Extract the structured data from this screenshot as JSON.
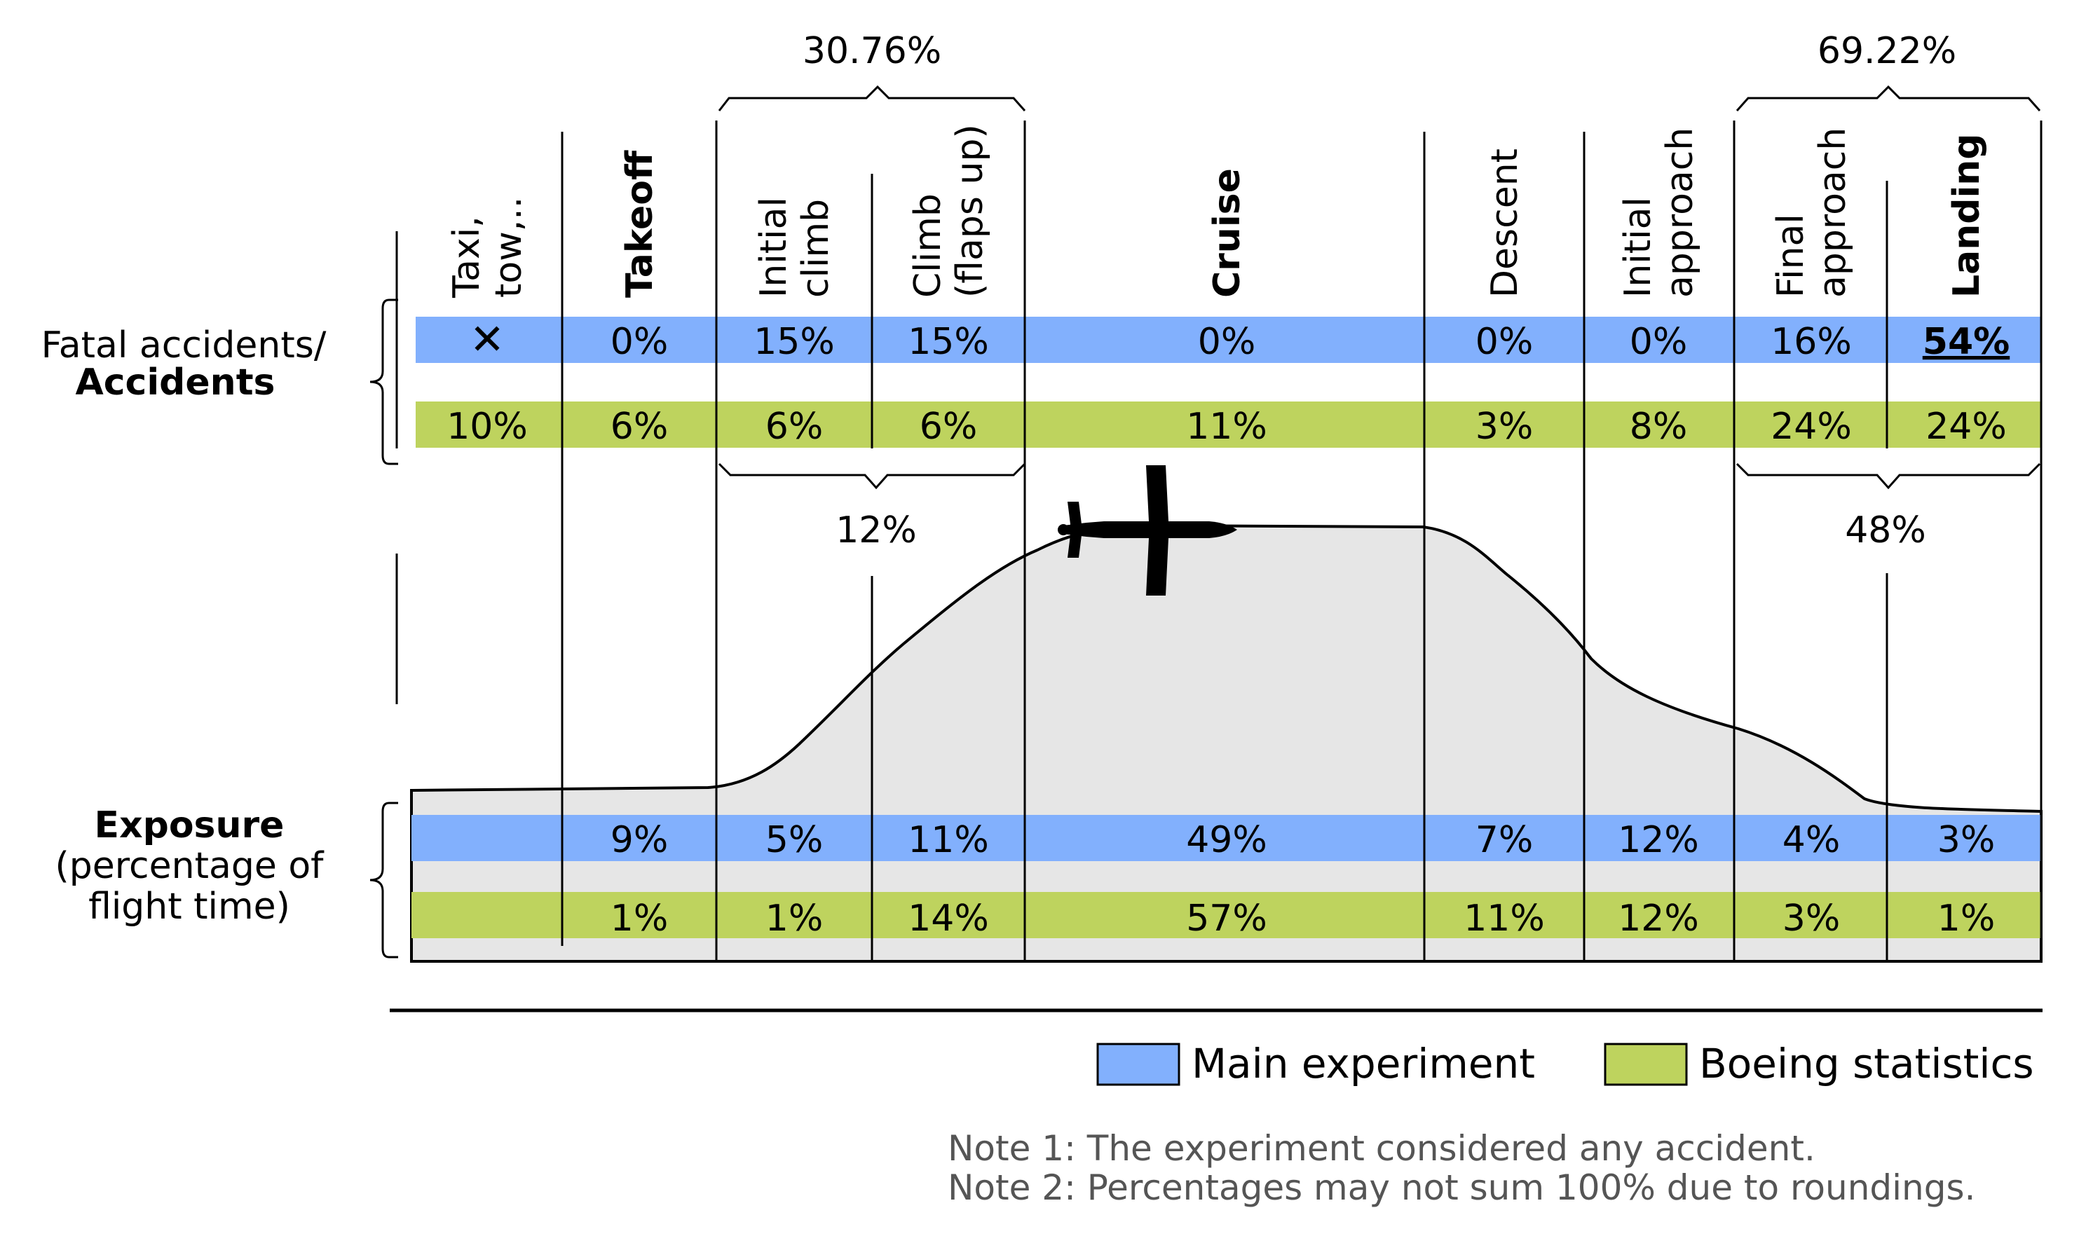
{
  "phases": [
    {
      "id": "taxi",
      "lines": [
        "Taxi,",
        "tow,.."
      ],
      "bold": false
    },
    {
      "id": "takeoff",
      "lines": [
        "Takeoff"
      ],
      "bold": true
    },
    {
      "id": "initial-climb",
      "lines": [
        "Initial",
        "climb"
      ],
      "bold": false
    },
    {
      "id": "climb-flaps-up",
      "lines": [
        "Climb",
        "(flaps up)"
      ],
      "bold": false
    },
    {
      "id": "cruise",
      "lines": [
        "Cruise"
      ],
      "bold": true
    },
    {
      "id": "descent",
      "lines": [
        "Descent"
      ],
      "bold": false
    },
    {
      "id": "initial-approach",
      "lines": [
        "Initial",
        "approach"
      ],
      "bold": false
    },
    {
      "id": "final-approach",
      "lines": [
        "Final",
        "approach"
      ],
      "bold": false
    },
    {
      "id": "landing",
      "lines": [
        "Landing"
      ],
      "bold": true
    }
  ],
  "accidents_label": {
    "line1": "Fatal accidents/",
    "line2": "Accidents"
  },
  "exposure_label": {
    "line1": "Exposure",
    "line2": "(percentage of",
    "line3": "flight time)"
  },
  "accidents": {
    "main": [
      "✕",
      "0%",
      "15%",
      "15%",
      "0%",
      "0%",
      "0%",
      "16%",
      "54%"
    ],
    "boeing": [
      "10%",
      "6%",
      "6%",
      "6%",
      "11%",
      "3%",
      "8%",
      "24%",
      "24%"
    ]
  },
  "exposure": {
    "main": [
      "",
      "9%",
      "5%",
      "11%",
      "49%",
      "7%",
      "12%",
      "4%",
      "3%"
    ],
    "boeing": [
      "",
      "1%",
      "1%",
      "14%",
      "57%",
      "11%",
      "12%",
      "3%",
      "1%"
    ]
  },
  "groups": {
    "climb_top": "30.76%",
    "climb_bottom": "12%",
    "approach_top": "69.22%",
    "approach_bottom": "48%"
  },
  "legend": {
    "main": "Main experiment",
    "boeing": "Boeing statistics"
  },
  "notes": {
    "note1": "Note 1: The experiment considered any accident.",
    "note2": "Note 2: Percentages may not sum 100% due to roundings."
  },
  "colors": {
    "main": "#82b0fd",
    "boeing": "#bed35e",
    "profile": "#e6e6e6"
  }
}
